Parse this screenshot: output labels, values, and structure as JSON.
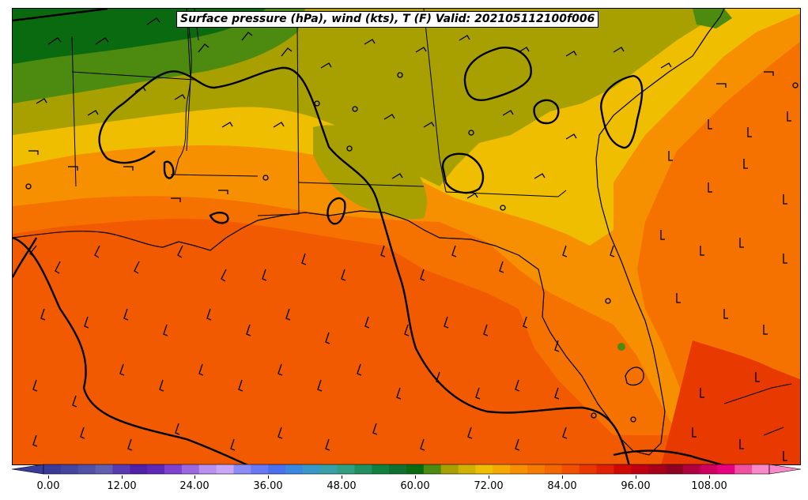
{
  "map": {
    "title": "Surface pressure (hPa), wind (kts), T (F) Valid: 202105112100f006",
    "region": "Gulf Coast / Southeast United States",
    "fields": [
      "temperature-fill",
      "pressure-contours",
      "wind-barbs"
    ],
    "colors": {
      "ocean_warm": "#f15a00",
      "gulf_orange": "#f57200",
      "coast_orange": "#f79000",
      "yellow": "#f0be00",
      "olive": "#a7a000",
      "green": "#4c8a10",
      "dark_green": "#0a6a10",
      "contour": "#000000"
    }
  },
  "colorbar": {
    "tick_labels": [
      "0.00",
      "12.00",
      "24.00",
      "36.00",
      "48.00",
      "60.00",
      "72.00",
      "84.00",
      "96.00",
      "108.00"
    ],
    "colors": [
      "#3a3a9a",
      "#45459f",
      "#5050a6",
      "#6060ae",
      "#5a3ab0",
      "#5020a8",
      "#6028b8",
      "#8040d0",
      "#9c68e0",
      "#b890ee",
      "#c8a8f6",
      "#8c8cf6",
      "#6a78f8",
      "#4a70f0",
      "#3a88e0",
      "#3a98c8",
      "#38a0a8",
      "#30a080",
      "#209060",
      "#108040",
      "#107030",
      "#0a6a10",
      "#4c8a10",
      "#a7a000",
      "#d0b000",
      "#f0be00",
      "#f6a800",
      "#f79000",
      "#f57a00",
      "#f36600",
      "#f05000",
      "#e83800",
      "#e02000",
      "#d00a00",
      "#c00010",
      "#a80018",
      "#900020",
      "#b00040",
      "#d00060",
      "#e80080",
      "#f050a0",
      "#f888c8"
    ]
  }
}
